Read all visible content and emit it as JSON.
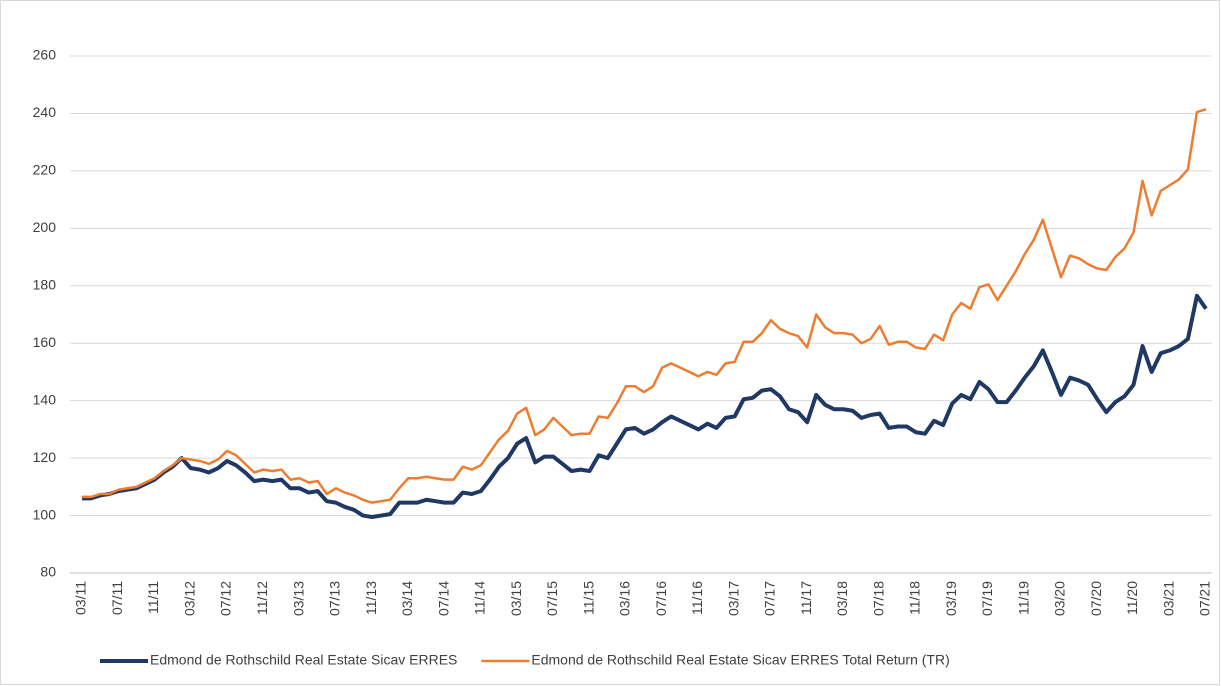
{
  "chart_data": {
    "type": "line",
    "categories": [
      "03/11",
      null,
      null,
      null,
      "07/11",
      null,
      null,
      null,
      "11/11",
      null,
      null,
      null,
      "03/12",
      null,
      null,
      null,
      "07/12",
      null,
      null,
      null,
      "11/12",
      null,
      null,
      null,
      "03/13",
      null,
      null,
      null,
      "07/13",
      null,
      null,
      null,
      "11/13",
      null,
      null,
      null,
      "03/14",
      null,
      null,
      null,
      "07/14",
      null,
      null,
      null,
      "11/14",
      null,
      null,
      null,
      "03/15",
      null,
      null,
      null,
      "07/15",
      null,
      null,
      null,
      "11/15",
      null,
      null,
      null,
      "03/16",
      null,
      null,
      null,
      "07/16",
      null,
      null,
      null,
      "11/16",
      null,
      null,
      null,
      "03/17",
      null,
      null,
      null,
      "07/17",
      null,
      null,
      null,
      "11/17",
      null,
      null,
      null,
      "03/18",
      null,
      null,
      null,
      "07/18",
      null,
      null,
      null,
      "11/18",
      null,
      null,
      null,
      "03/19",
      null,
      null,
      null,
      "07/19",
      null,
      null,
      null,
      "11/19",
      null,
      null,
      null,
      "03/20",
      null,
      null,
      null,
      "07/20",
      null,
      null,
      null,
      "11/20",
      null,
      null,
      null,
      "03/21",
      null,
      null,
      null,
      "07/21"
    ],
    "series": [
      {
        "name": "Edmond de Rothschild Real Estate Sicav ERRES",
        "color": "#203864",
        "values": [
          106,
          106,
          107,
          107.5,
          108.5,
          109,
          109.5,
          111,
          112.5,
          115,
          117,
          120,
          116.5,
          116,
          115,
          116.5,
          119,
          117.5,
          115,
          112,
          112.5,
          112,
          112.5,
          109.5,
          109.5,
          108,
          108.5,
          105,
          104.5,
          103,
          102,
          100,
          99.5,
          100,
          100.5,
          104.5,
          104.5,
          104.5,
          105.5,
          105,
          104.5,
          104.5,
          108,
          107.5,
          108.5,
          112.5,
          117,
          120,
          125,
          127,
          118.5,
          120.5,
          120.5,
          118,
          115.5,
          116,
          115.5,
          121,
          120,
          125,
          130,
          130.5,
          128.5,
          130,
          132.5,
          134.5,
          133,
          131.5,
          130,
          132,
          130.5,
          134,
          134.5,
          140.5,
          141,
          143.5,
          144,
          141.5,
          137,
          136,
          132.5,
          142,
          138.5,
          137,
          137,
          136.5,
          134,
          135,
          135.5,
          130.5,
          131,
          131,
          129,
          128.5,
          133,
          131.5,
          139,
          142,
          140.5,
          146.5,
          144,
          139.5,
          139.5,
          143.5,
          148,
          152,
          157.5,
          150,
          142,
          148,
          147,
          145.5,
          140.5,
          136,
          139.5,
          141.5,
          145.5,
          159,
          150,
          156.5,
          157.5,
          159,
          161.5,
          176.5,
          172
        ]
      },
      {
        "name": "Edmond de Rothschild Real Estate Sicav ERRES Total Return (TR)",
        "color": "#ed7d31",
        "values": [
          106.5,
          106.5,
          107.5,
          107.5,
          109,
          109.5,
          110,
          111.5,
          113,
          115.5,
          117.5,
          120,
          119.5,
          119,
          118,
          119.5,
          122.5,
          121,
          118,
          115,
          116,
          115.5,
          116,
          112.5,
          113,
          111.5,
          112,
          107.5,
          109.5,
          108,
          107,
          105.5,
          104.5,
          105,
          105.5,
          109.5,
          113,
          113,
          113.5,
          113,
          112.5,
          112.5,
          117,
          116,
          117.5,
          122,
          126.5,
          129.5,
          135.5,
          137.5,
          128,
          130,
          134,
          131,
          128,
          128.5,
          128.5,
          134.5,
          134,
          139,
          145,
          145,
          143,
          145,
          151.5,
          153,
          151.5,
          150,
          148.5,
          150,
          149,
          153,
          153.5,
          160.5,
          160.5,
          163.5,
          168,
          165,
          163.5,
          162.5,
          158.5,
          170,
          165.5,
          163.5,
          163.5,
          163,
          160,
          161.5,
          166,
          159.5,
          160.5,
          160.5,
          158.5,
          158,
          163,
          161,
          170,
          174,
          172,
          179.5,
          180.5,
          175,
          180,
          185,
          191,
          196,
          203,
          193,
          183,
          190.5,
          189.5,
          187.5,
          186,
          185.5,
          190,
          193,
          198.5,
          216.5,
          204.5,
          213,
          215,
          217,
          220.5,
          240.5,
          241.5
        ]
      }
    ],
    "ylim": [
      80,
      260
    ],
    "yticks": [
      80,
      100,
      120,
      140,
      160,
      180,
      200,
      220,
      240,
      260
    ],
    "grid": true,
    "legend": "bottom"
  }
}
